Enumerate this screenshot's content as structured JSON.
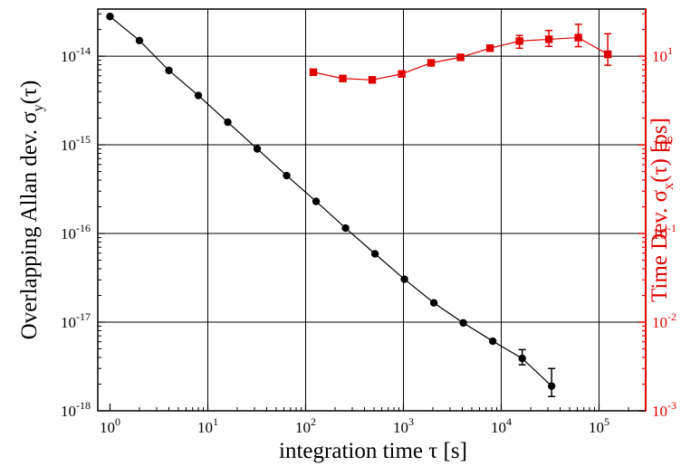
{
  "chart_data": {
    "type": "scatter",
    "title": "",
    "xlabel": "integration time τ [s]",
    "ylabel_left": "Overlapping Allan dev. σ_y(τ)",
    "ylabel_right": "Time Dev. σ_x(τ) [ps]",
    "x_scale": "log",
    "y_scale": "log",
    "xlim": [
      0.75,
      300000
    ],
    "ylim_left": [
      1e-18,
      3.4e-14
    ],
    "ylim_right": [
      0.001,
      34
    ],
    "grid": true,
    "x_ticks": [
      {
        "value": 1,
        "base": "10",
        "exp": "0"
      },
      {
        "value": 10,
        "base": "10",
        "exp": "1"
      },
      {
        "value": 100,
        "base": "10",
        "exp": "2"
      },
      {
        "value": 1000,
        "base": "10",
        "exp": "3"
      },
      {
        "value": 10000,
        "base": "10",
        "exp": "4"
      },
      {
        "value": 100000,
        "base": "10",
        "exp": "5"
      }
    ],
    "y_left_ticks": [
      {
        "value": 1e-14,
        "base": "10",
        "exp": "-14"
      },
      {
        "value": 1e-15,
        "base": "10",
        "exp": "-15"
      },
      {
        "value": 1e-16,
        "base": "10",
        "exp": "-16"
      },
      {
        "value": 1e-17,
        "base": "10",
        "exp": "-17"
      },
      {
        "value": 1e-18,
        "base": "10",
        "exp": "-18"
      }
    ],
    "y_right_ticks": [
      {
        "value": 10,
        "base": "10",
        "exp": "1"
      },
      {
        "value": 1,
        "base": "10",
        "exp": "0"
      },
      {
        "value": 0.1,
        "base": "10",
        "exp": "-1"
      },
      {
        "value": 0.01,
        "base": "10",
        "exp": "-2"
      },
      {
        "value": 0.001,
        "base": "10",
        "exp": "-3"
      }
    ],
    "series": [
      {
        "axis": "left",
        "color": "#000000",
        "marker": "circle",
        "points": [
          {
            "x": 1,
            "y": 2.8e-14
          },
          {
            "x": 2,
            "y": 1.5e-14
          },
          {
            "x": 4,
            "y": 6.9e-15
          },
          {
            "x": 8,
            "y": 3.6e-15
          },
          {
            "x": 16,
            "y": 1.8e-15
          },
          {
            "x": 32,
            "y": 9e-16
          },
          {
            "x": 64,
            "y": 4.5e-16
          },
          {
            "x": 128,
            "y": 2.3e-16
          },
          {
            "x": 256,
            "y": 1.15e-16
          },
          {
            "x": 512,
            "y": 5.9e-17
          },
          {
            "x": 1024,
            "y": 3.05e-17
          },
          {
            "x": 2048,
            "y": 1.65e-17
          },
          {
            "x": 4096,
            "y": 9.8e-18
          },
          {
            "x": 8192,
            "y": 6.1e-18
          },
          {
            "x": 16384,
            "y": 3.9e-18,
            "err_low": 3.3e-18,
            "err_high": 4.9e-18
          },
          {
            "x": 32768,
            "y": 1.9e-18,
            "err_low": 1.45e-18,
            "err_high": 3e-18
          }
        ]
      },
      {
        "axis": "right",
        "color": "#e00000",
        "marker": "square",
        "points": [
          {
            "x": 120,
            "y": 6.6
          },
          {
            "x": 240,
            "y": 5.6
          },
          {
            "x": 480,
            "y": 5.4
          },
          {
            "x": 960,
            "y": 6.3
          },
          {
            "x": 1920,
            "y": 8.4
          },
          {
            "x": 3840,
            "y": 9.7
          },
          {
            "x": 7680,
            "y": 12.3
          },
          {
            "x": 15360,
            "y": 14.8,
            "err_low": 12.3,
            "err_high": 17.1
          },
          {
            "x": 30720,
            "y": 15.5,
            "err_low": 12.9,
            "err_high": 19.5
          },
          {
            "x": 61440,
            "y": 16.2,
            "err_low": 12.8,
            "err_high": 22.9
          },
          {
            "x": 122880,
            "y": 10.5,
            "err_low": 7.9,
            "err_high": 17.9
          }
        ]
      }
    ]
  }
}
